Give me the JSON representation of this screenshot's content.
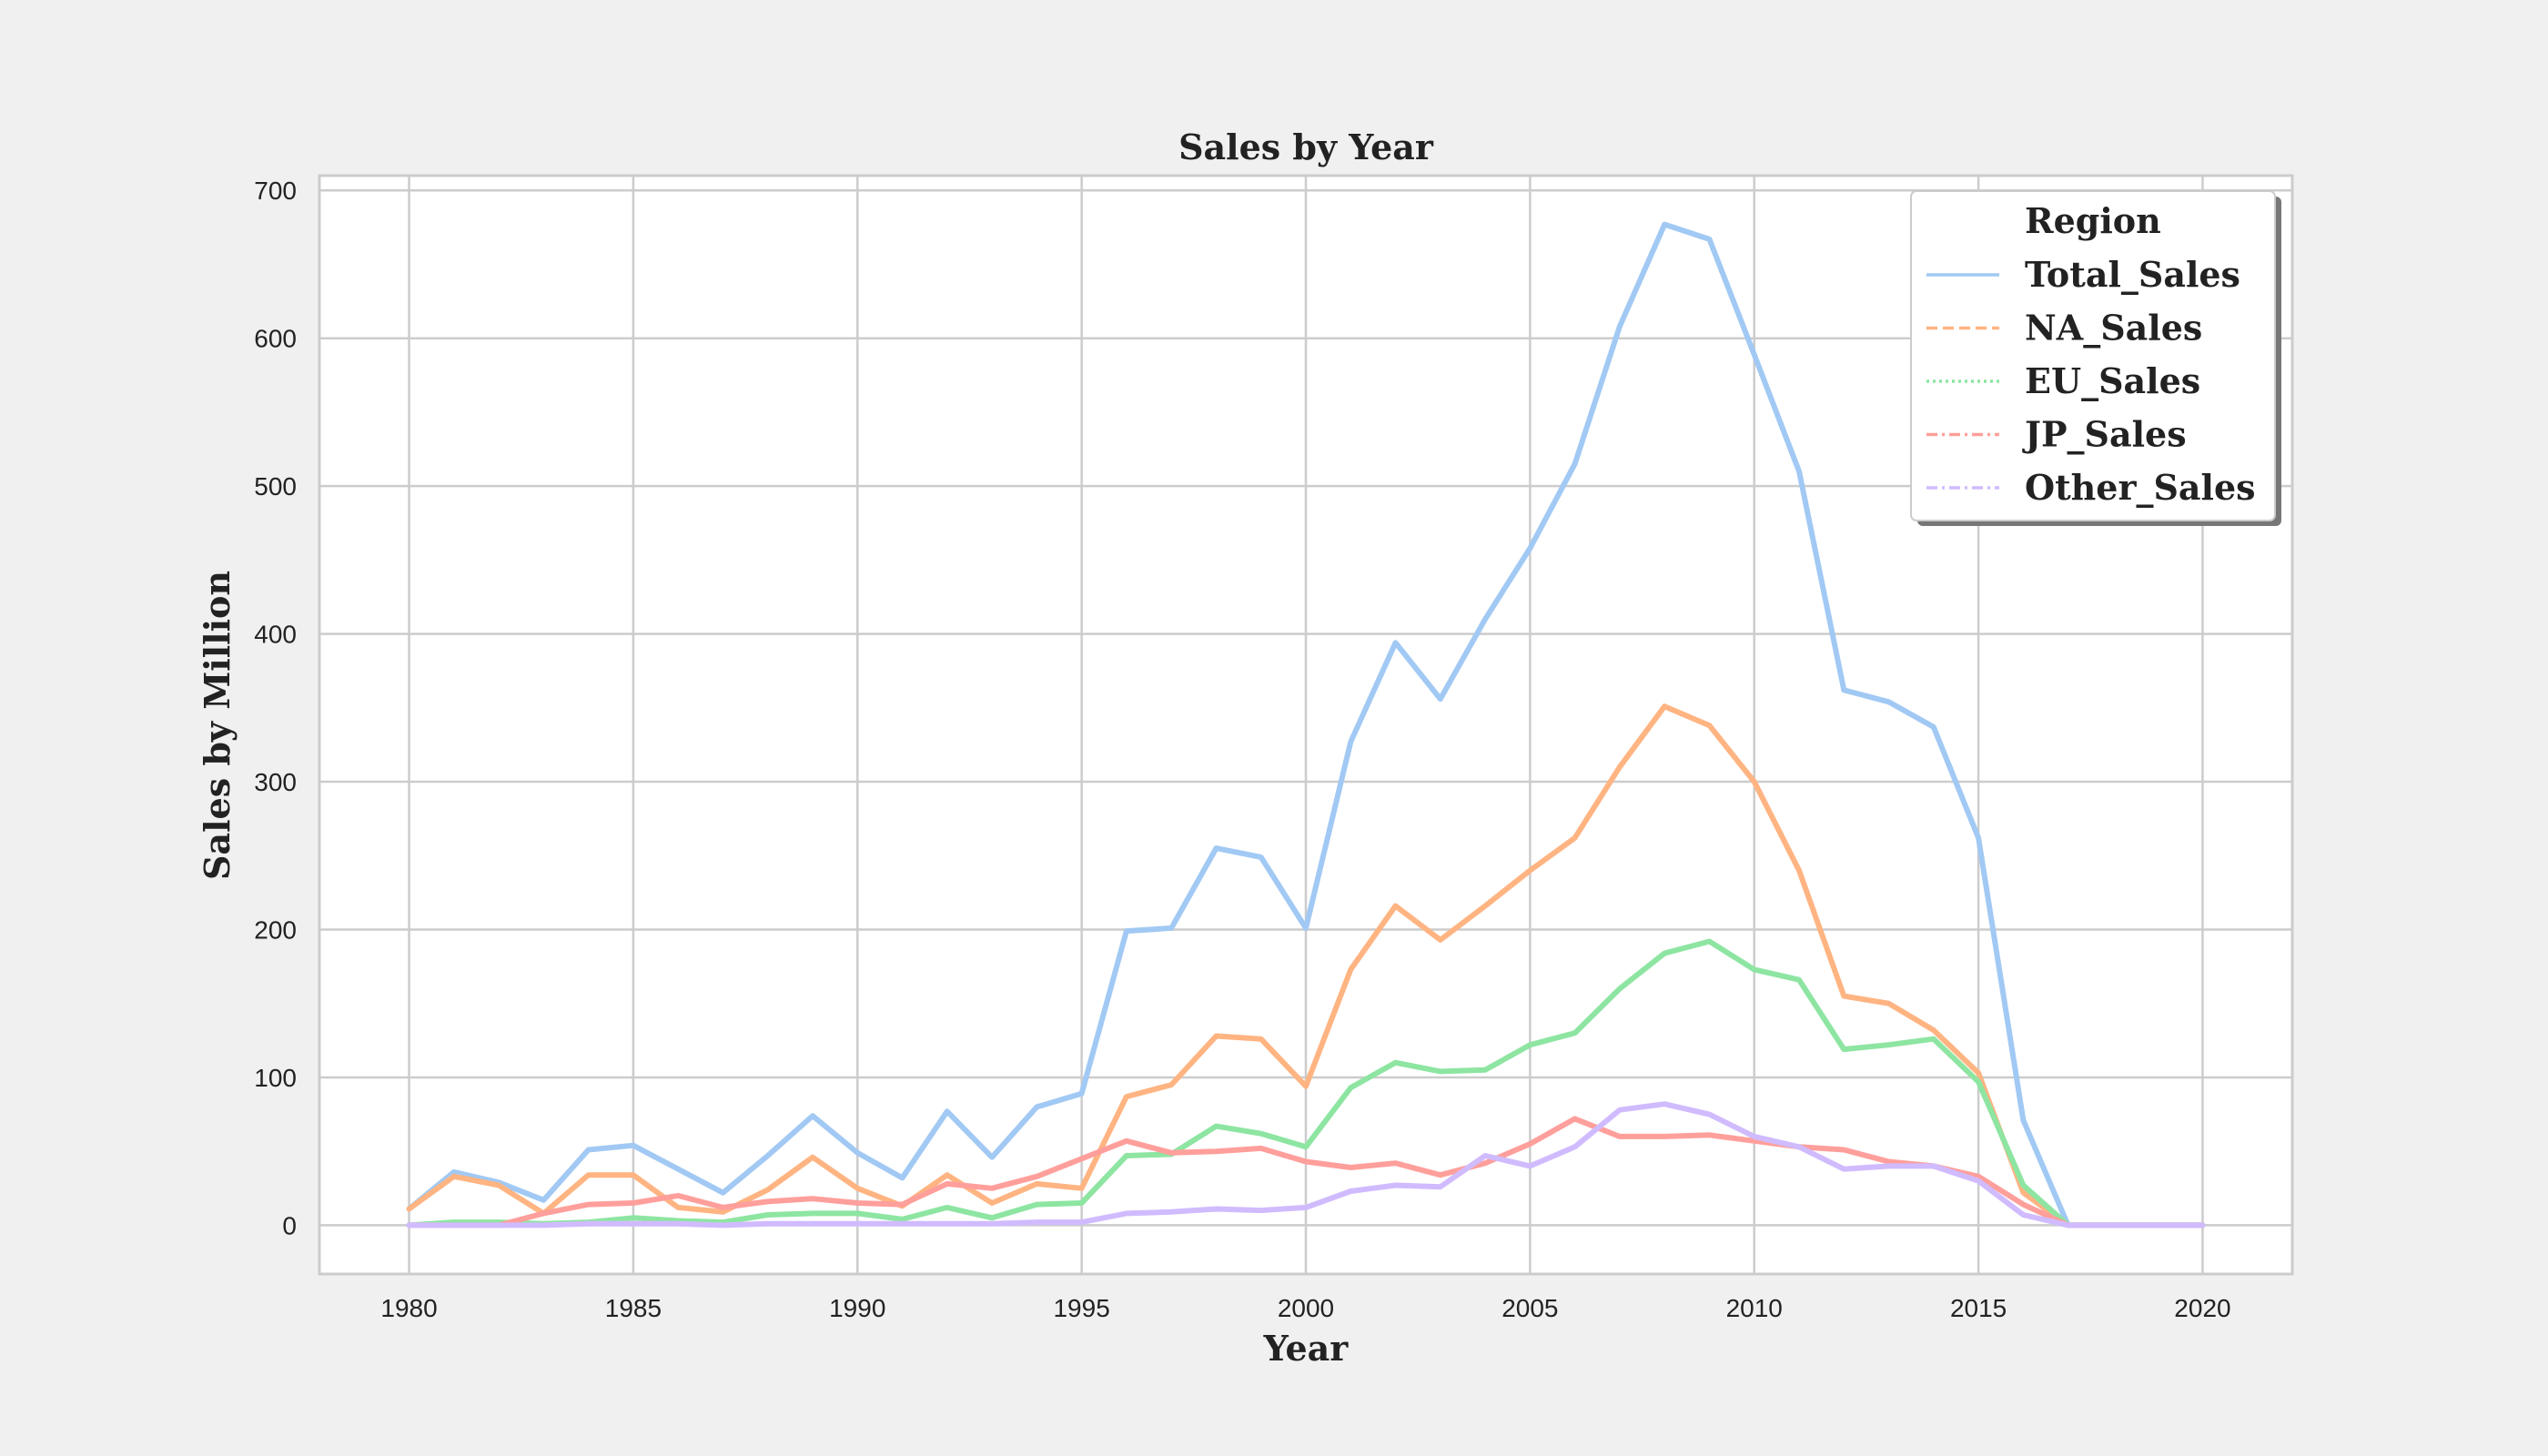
{
  "chart_data": {
    "type": "line",
    "title": "Sales by Year",
    "xlabel": "Year",
    "ylabel": "Sales by Million",
    "xlim": [
      1978,
      2022
    ],
    "ylim": [
      -33,
      710
    ],
    "xticks": [
      "1980",
      "1985",
      "1990",
      "1995",
      "2000",
      "2005",
      "2010",
      "2015",
      "2020"
    ],
    "yticks": [
      "0",
      "100",
      "200",
      "300",
      "400",
      "500",
      "600",
      "700"
    ],
    "grid": true,
    "legend": {
      "title": "Region",
      "placement": "top-right"
    },
    "x": [
      1980,
      1981,
      1982,
      1983,
      1984,
      1985,
      1986,
      1987,
      1988,
      1989,
      1990,
      1991,
      1992,
      1993,
      1994,
      1995,
      1996,
      1997,
      1998,
      1999,
      2000,
      2001,
      2002,
      2003,
      2004,
      2005,
      2006,
      2007,
      2008,
      2009,
      2010,
      2011,
      2012,
      2013,
      2014,
      2015,
      2016,
      2017,
      2018,
      2019,
      2020
    ],
    "series": [
      {
        "name": "Total_Sales",
        "color": "#a1c9f4",
        "dash": "solid",
        "values": [
          11,
          36,
          29,
          17,
          51,
          54,
          38,
          22,
          47,
          74,
          49,
          32,
          77,
          46,
          80,
          89,
          199,
          201,
          255,
          249,
          201,
          327,
          394,
          356,
          410,
          458,
          515,
          608,
          677,
          667,
          589,
          510,
          362,
          354,
          337,
          262,
          71,
          0,
          0,
          0,
          0
        ]
      },
      {
        "name": "NA_Sales",
        "color": "#ffb482",
        "dash": "dashed",
        "values": [
          11,
          33,
          27,
          8,
          34,
          34,
          12,
          9,
          24,
          46,
          25,
          13,
          34,
          15,
          28,
          25,
          87,
          95,
          128,
          126,
          94,
          173,
          216,
          193,
          216,
          240,
          262,
          310,
          351,
          338,
          300,
          240,
          155,
          150,
          132,
          103,
          22,
          0,
          0,
          0,
          0
        ]
      },
      {
        "name": "EU_Sales",
        "color": "#8de5a1",
        "dash": "dotted",
        "values": [
          0,
          2,
          2,
          1,
          2,
          5,
          3,
          2,
          7,
          8,
          8,
          4,
          12,
          5,
          14,
          15,
          47,
          48,
          67,
          62,
          53,
          93,
          110,
          104,
          105,
          122,
          130,
          160,
          184,
          192,
          173,
          166,
          119,
          122,
          126,
          97,
          27,
          0,
          0,
          0,
          0
        ]
      },
      {
        "name": "JP_Sales",
        "color": "#ff9f9b",
        "dash": "dashdot",
        "values": [
          0,
          0,
          0,
          8,
          14,
          15,
          20,
          12,
          16,
          18,
          15,
          14,
          28,
          25,
          33,
          45,
          57,
          49,
          50,
          52,
          43,
          39,
          42,
          34,
          42,
          55,
          72,
          60,
          60,
          61,
          57,
          53,
          51,
          43,
          40,
          33,
          14,
          0,
          0,
          0,
          0
        ]
      },
      {
        "name": "Other_Sales",
        "color": "#d0bbff",
        "dash": "dashdot",
        "values": [
          0,
          0,
          0,
          0,
          1,
          1,
          1,
          0,
          1,
          1,
          1,
          1,
          1,
          1,
          2,
          2,
          8,
          9,
          11,
          10,
          12,
          23,
          27,
          26,
          47,
          40,
          53,
          78,
          82,
          75,
          60,
          53,
          38,
          40,
          40,
          30,
          7,
          0,
          0,
          0,
          0
        ]
      }
    ]
  }
}
